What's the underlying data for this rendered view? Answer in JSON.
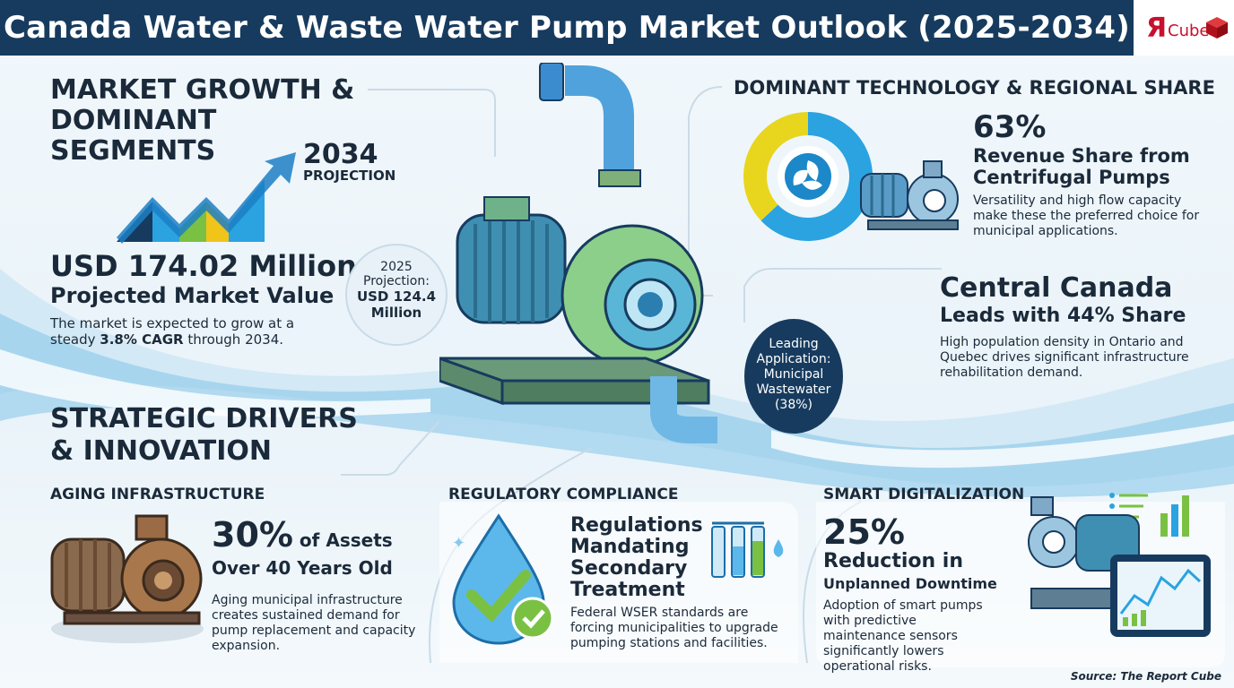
{
  "header": {
    "title": "Canada Water & Waste Water Pump Market Outlook (2025-2034)"
  },
  "logo": {
    "mark": "Я",
    "text": "Cube",
    "color": "#c8102e"
  },
  "market_growth": {
    "heading_line1": "MARKET GROWTH &",
    "heading_line2": "DOMINANT",
    "heading_line3": "SEGMENTS",
    "projection_year": "2034",
    "projection_label": "PROJECTION",
    "value": "USD 174.02 Million",
    "value_label": "Projected Market Value",
    "desc_pre": "The market is expected to grow at a steady ",
    "desc_cagr": "3.8% CAGR",
    "desc_post": " through 2034.",
    "chart_icon": "rising-bar-chart-icon"
  },
  "projection_2025": {
    "line1": "2025",
    "line2": "Projection:",
    "line3": "USD 124.4",
    "line4": "Million"
  },
  "technology": {
    "heading": "DOMINANT TECHNOLOGY & REGIONAL SHARE",
    "percent": "63%",
    "label_line1": "Revenue Share from",
    "label_line2": "Centrifugal Pumps",
    "desc": "Versatility and high flow capacity make these the preferred choice for municipal applications.",
    "donut": {
      "share": 0.63,
      "primary_color": "#2aa3e0",
      "secondary_color": "#e8d61e"
    }
  },
  "region": {
    "title": "Central Canada",
    "subtitle": "Leads with 44% Share",
    "desc": "High population density in Ontario and Quebec drives significant infrastructure rehabilitation demand."
  },
  "leading_application": {
    "line1": "Leading",
    "line2": "Application:",
    "line3": "Municipal",
    "line4": "Wastewater",
    "line5": "(38%)"
  },
  "drivers": {
    "heading_line1": "STRATEGIC DRIVERS",
    "heading_line2": "& INNOVATION"
  },
  "aging": {
    "heading": "AGING INFRASTRUCTURE",
    "stat": "30%",
    "stat_suffix": " of Assets",
    "stat_line2": "Over 40 Years Old",
    "desc": "Aging municipal infrastructure creates sustained demand for pump replacement and capacity expansion."
  },
  "regulatory": {
    "heading": "REGULATORY COMPLIANCE",
    "title_line1": "Regulations",
    "title_line2": "Mandating",
    "title_line3": "Secondary",
    "title_line4": "Treatment",
    "desc": "Federal WSER standards are forcing municipalities to upgrade pumping stations and facilities."
  },
  "smart": {
    "heading": "SMART DIGITALIZATION",
    "stat": "25%",
    "stat_line2": "Reduction in",
    "stat_line3": "Unplanned Downtime",
    "desc": "Adoption of smart pumps with predictive maintenance sensors significantly lowers operational risks."
  },
  "source": "Source: The Report Cube"
}
